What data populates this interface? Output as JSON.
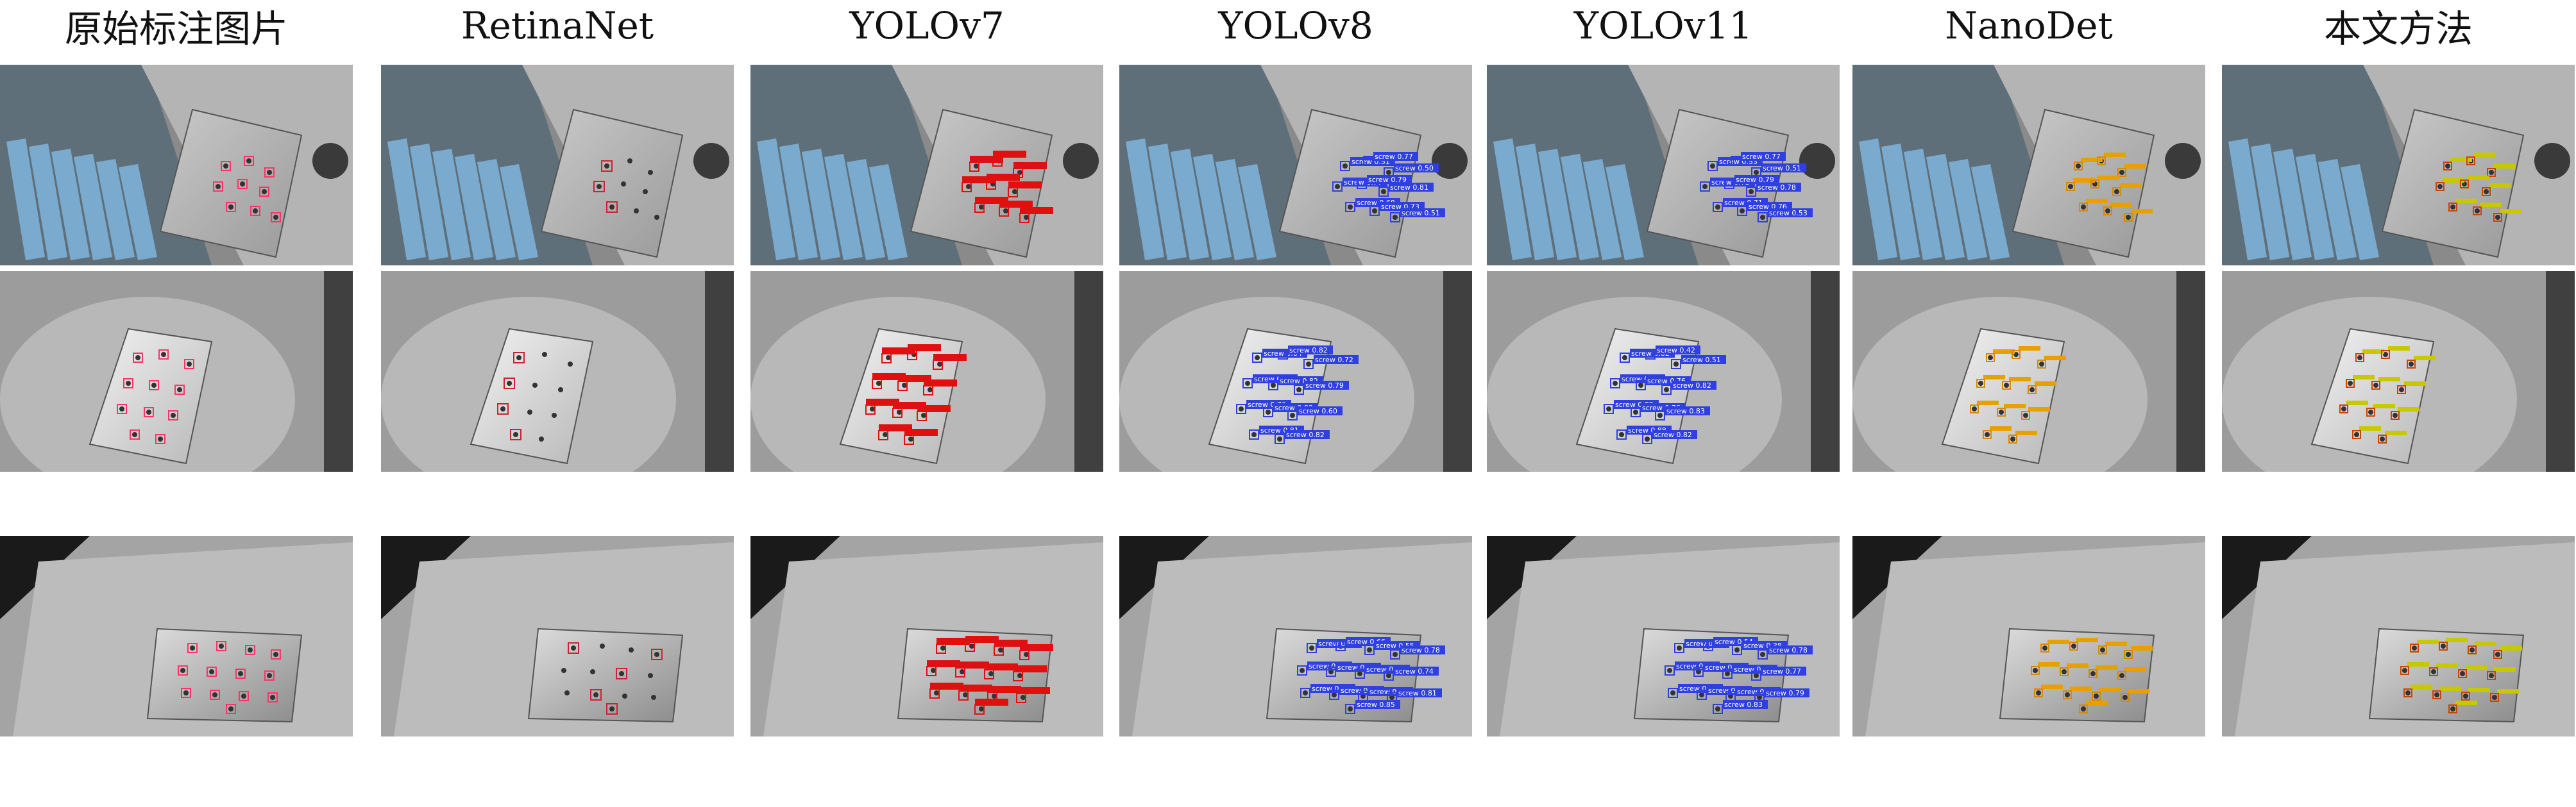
{
  "columns": [
    {
      "key": "gt",
      "title": "原始标注图片",
      "box_color": "#ff3366",
      "label_fill": "none",
      "label_text_color": "#ff3366",
      "style": "gt"
    },
    {
      "key": "retina",
      "title": "RetinaNet",
      "box_color": "#cc2233",
      "label_fill": "none",
      "label_text_color": "#333333",
      "style": "sparse"
    },
    {
      "key": "yolov7",
      "title": "YOLOv7",
      "box_color": "#e01010",
      "label_fill": "#e01010",
      "label_text_color": "#ffffff",
      "style": "filled"
    },
    {
      "key": "yolov8",
      "title": "YOLOv8",
      "box_color": "#2f3fe0",
      "label_fill": "#2f3fe0",
      "label_text_color": "#ffffff",
      "style": "labeled"
    },
    {
      "key": "yolov11",
      "title": "YOLOv11",
      "box_color": "#2f3fe0",
      "label_fill": "#2f3fe0",
      "label_text_color": "#ffffff",
      "style": "labeled"
    },
    {
      "key": "nanodet",
      "title": "NanoDet",
      "box_color": "#d68a00",
      "label_fill": "#e6a000",
      "label_text_color": "#333333",
      "style": "small"
    },
    {
      "key": "ours",
      "title": "本文方法",
      "box_color": "#cc4400",
      "label_fill": "#c8c800",
      "label_text_color": "#333333",
      "style": "small"
    }
  ],
  "rows": [
    {
      "key": "scene1",
      "scores": {
        "yolov8": [
          "screw 0.51",
          "screw 0.77",
          "screw 0.50",
          "screw 0.77",
          "screw 0.79",
          "screw 0.81",
          "screw 0.68",
          "screw 0.73"
        ],
        "yolov11": [
          "screw 0.53",
          "screw 0.77",
          "screw 0.51",
          "screw 0.73",
          "screw 0.79",
          "screw 0.78",
          "screw 0.71",
          "screw 0.76"
        ]
      }
    },
    {
      "key": "scene2",
      "scores": {
        "yolov8": [
          "screw 0.84",
          "screw 0.82",
          "screw 0.72",
          "screw 0.80",
          "screw 0.82",
          "screw 0.79",
          "screw 0.76",
          "screw 0.83",
          "screw 0.60",
          "screw 0.81",
          "screw 0.82"
        ],
        "yolov11": [
          "screw 0.82",
          "screw 0.42",
          "screw 0.51",
          "screw 0.72",
          "screw 0.76",
          "screw 0.82",
          "screw 0.82",
          "screw 0.76",
          "screw 0.83",
          "screw 0.88",
          "screw 0.82"
        ]
      }
    },
    {
      "key": "scene3",
      "scores": {
        "yolov8": [
          "screw 0.73",
          "screw 0.66",
          "screw 0.55",
          "screw 0.78",
          "screw 0.73",
          "screw 0.75",
          "screw 0.79",
          "screw 0.74",
          "screw 0.82",
          "screw 0.80",
          "screw 0.71",
          "screw 0.81",
          "screw 0.85"
        ],
        "yolov11": [
          "screw 0.72",
          "screw 0.54",
          "screw 0.38",
          "screw 0.78",
          "screw 0.76",
          "screw 0.42",
          "screw 0.74",
          "screw 0.77",
          "screw 0.79",
          "screw 0.85",
          "screw 0.76",
          "screw 0.79",
          "screw 0.83"
        ]
      }
    }
  ]
}
